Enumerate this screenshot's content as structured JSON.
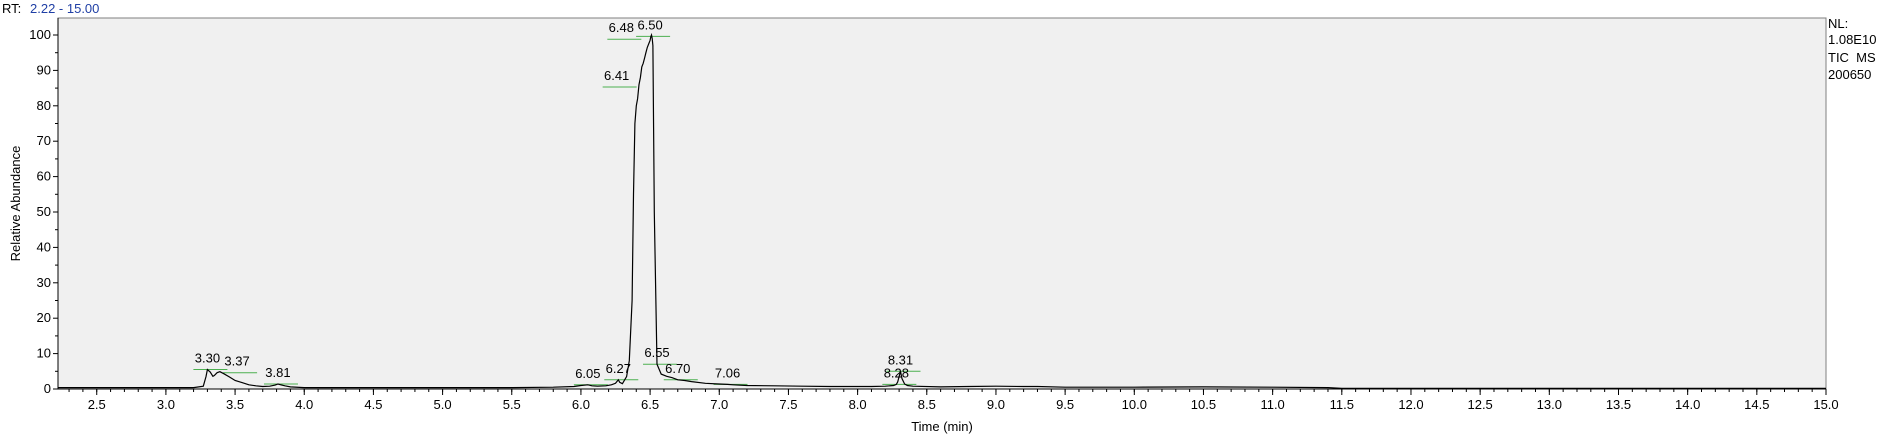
{
  "header": {
    "rt_label": "RT:",
    "rt_range": "2.22 - 15.00"
  },
  "info": {
    "nl_label": "NL:",
    "nl_value": "1.08E10",
    "scan_type": "TIC  MS",
    "sample_id": "200650"
  },
  "colors": {
    "background": "#f0f0f0",
    "trace": "#000000",
    "peak_marker": "#4caf50",
    "rt_range": "#1f3fa5"
  },
  "chart_data": {
    "type": "line",
    "xlabel": "Time (min)",
    "ylabel": "Relative Abundance",
    "xlim": [
      2.22,
      15.0
    ],
    "ylim": [
      0,
      100
    ],
    "x_ticks": [
      "2.5",
      "3.0",
      "3.5",
      "4.0",
      "4.5",
      "5.0",
      "5.5",
      "6.0",
      "6.5",
      "7.0",
      "7.5",
      "8.0",
      "8.5",
      "9.0",
      "9.5",
      "10.0",
      "10.5",
      "11.0",
      "11.5",
      "12.0",
      "12.5",
      "13.0",
      "13.5",
      "14.0",
      "14.5",
      "15.0"
    ],
    "y_ticks": [
      "0",
      "10",
      "20",
      "30",
      "40",
      "50",
      "60",
      "70",
      "80",
      "90",
      "100"
    ],
    "grid": false,
    "series": [
      {
        "x": [
          2.22,
          2.6,
          3.0,
          3.2,
          3.27,
          3.29,
          3.3,
          3.32,
          3.34,
          3.35,
          3.37,
          3.39,
          3.42,
          3.46,
          3.5,
          3.55,
          3.6,
          3.65,
          3.7,
          3.75,
          3.79,
          3.81,
          3.83,
          3.86,
          3.9,
          4.0,
          4.5,
          5.0,
          5.5,
          5.8,
          5.95,
          6.0,
          6.05,
          6.08,
          6.12,
          6.18,
          6.22,
          6.25,
          6.27,
          6.28,
          6.3,
          6.33,
          6.35,
          6.37,
          6.38,
          6.39,
          6.4,
          6.41,
          6.42,
          6.43,
          6.44,
          6.45,
          6.46,
          6.47,
          6.48,
          6.49,
          6.5,
          6.505,
          6.51,
          6.515,
          6.52,
          6.53,
          6.55,
          6.58,
          6.62,
          6.66,
          6.7,
          6.75,
          6.8,
          6.9,
          7.0,
          7.06,
          7.1,
          7.2,
          7.4,
          7.6,
          7.8,
          8.0,
          8.1,
          8.2,
          8.26,
          8.28,
          8.29,
          8.3,
          8.31,
          8.32,
          8.34,
          8.36,
          8.4,
          8.6,
          8.8,
          9.0,
          9.2,
          9.3,
          9.5,
          10.0,
          10.5,
          11.0,
          11.4,
          11.5,
          12.0,
          13.0,
          14.0,
          15.0
        ],
        "values": [
          0.4,
          0.4,
          0.4,
          0.4,
          0.8,
          3.5,
          5.5,
          4.8,
          3.6,
          3.8,
          4.6,
          4.9,
          4.3,
          3.4,
          2.4,
          1.8,
          1.2,
          0.9,
          0.7,
          0.8,
          1.1,
          1.4,
          1.2,
          0.9,
          0.6,
          0.4,
          0.4,
          0.4,
          0.4,
          0.5,
          0.7,
          1.0,
          1.2,
          0.9,
          0.8,
          0.9,
          1.2,
          1.6,
          2.6,
          1.9,
          1.5,
          3.5,
          8.0,
          25.0,
          55.0,
          75.0,
          80.0,
          82.0,
          86.0,
          88.0,
          91.0,
          92.0,
          93.5,
          95.0,
          96.5,
          97.5,
          98.5,
          99.5,
          100.0,
          99.0,
          97.0,
          50.0,
          7.0,
          4.2,
          3.6,
          3.2,
          2.6,
          2.4,
          2.1,
          1.6,
          1.4,
          1.3,
          1.2,
          1.0,
          0.9,
          0.8,
          0.7,
          0.7,
          0.7,
          0.8,
          1.0,
          1.3,
          2.0,
          3.5,
          5.0,
          3.0,
          1.4,
          1.0,
          0.8,
          0.6,
          0.7,
          0.8,
          0.7,
          0.7,
          0.5,
          0.5,
          0.6,
          0.5,
          0.4,
          0.2,
          0.2,
          0.2,
          0.2,
          0.2
        ]
      }
    ],
    "peak_labels": [
      {
        "label": "3.30",
        "x": 3.3,
        "y": 5.5
      },
      {
        "label": "3.37",
        "x": 3.37,
        "y": 4.6
      },
      {
        "label": "3.81",
        "x": 3.81,
        "y": 1.4
      },
      {
        "label": "6.05",
        "x": 6.05,
        "y": 1.2
      },
      {
        "label": "6.27",
        "x": 6.27,
        "y": 2.6
      },
      {
        "label": "6.41",
        "x": 6.41,
        "y": 82.0
      },
      {
        "label": "6.48",
        "x": 6.48,
        "y": 96.5
      },
      {
        "label": "6.50",
        "x": 6.5,
        "y": 98.5
      },
      {
        "label": "6.55",
        "x": 6.55,
        "y": 7.0
      },
      {
        "label": "6.70",
        "x": 6.7,
        "y": 2.6
      },
      {
        "label": "7.06",
        "x": 7.06,
        "y": 1.3
      },
      {
        "label": "8.28",
        "x": 8.28,
        "y": 1.3
      },
      {
        "label": "8.31",
        "x": 8.31,
        "y": 5.0
      }
    ]
  }
}
